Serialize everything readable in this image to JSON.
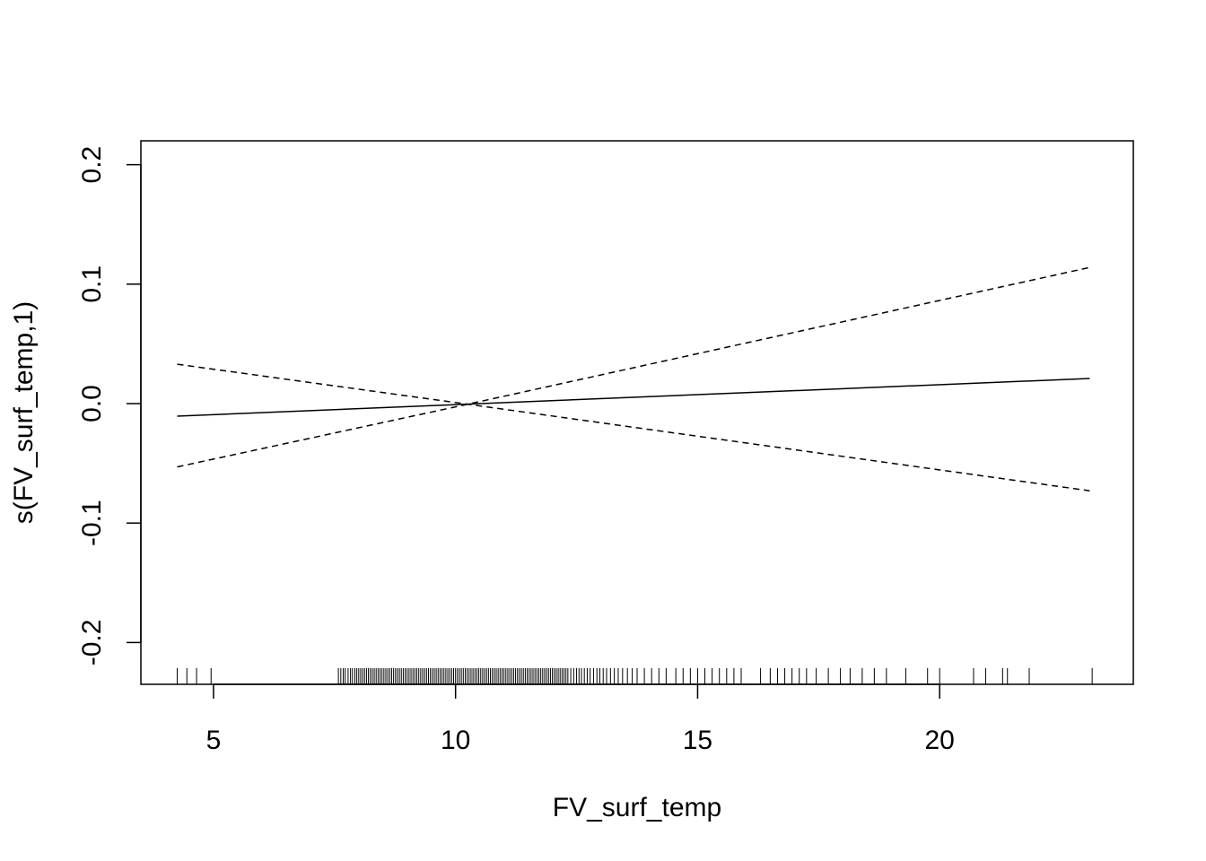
{
  "chart_data": {
    "type": "line",
    "title": "",
    "xlabel": "FV_surf_temp",
    "ylabel": "s(FV_surf_temp,1)",
    "xlim": [
      3.5,
      24
    ],
    "ylim": [
      -0.235,
      0.22
    ],
    "x_ticks": [
      5,
      10,
      15,
      20
    ],
    "x_tick_labels": [
      "5",
      "10",
      "15",
      "20"
    ],
    "y_ticks": [
      -0.2,
      -0.1,
      0.0,
      0.1,
      0.2
    ],
    "y_tick_labels": [
      "-0.2",
      "-0.1",
      "0.0",
      "0.1",
      "0.2"
    ],
    "grid": false,
    "legend": "none",
    "series": [
      {
        "style": "solid",
        "x": [
          4.25,
          23.1
        ],
        "y": [
          -0.0105,
          0.021
        ]
      },
      {
        "style": "dashed",
        "x": [
          4.25,
          10.25,
          23.1
        ],
        "y": [
          -0.053,
          -0.0005,
          0.114
        ]
      },
      {
        "style": "dashed",
        "x": [
          4.25,
          10.25,
          23.1
        ],
        "y": [
          0.033,
          -0.0005,
          -0.073
        ]
      }
    ],
    "rug_x": [
      4.25,
      4.45,
      4.65,
      4.95,
      7.58,
      7.63,
      7.68,
      7.72,
      7.78,
      7.83,
      7.87,
      7.92,
      7.96,
      8.0,
      8.04,
      8.08,
      8.12,
      8.16,
      8.2,
      8.24,
      8.28,
      8.32,
      8.36,
      8.4,
      8.44,
      8.48,
      8.52,
      8.56,
      8.6,
      8.64,
      8.68,
      8.72,
      8.76,
      8.8,
      8.84,
      8.88,
      8.92,
      8.96,
      9.0,
      9.04,
      9.08,
      9.12,
      9.16,
      9.2,
      9.24,
      9.28,
      9.32,
      9.36,
      9.4,
      9.44,
      9.48,
      9.52,
      9.56,
      9.6,
      9.64,
      9.68,
      9.72,
      9.76,
      9.8,
      9.84,
      9.88,
      9.92,
      9.96,
      10.0,
      10.04,
      10.08,
      10.12,
      10.16,
      10.2,
      10.24,
      10.28,
      10.32,
      10.36,
      10.4,
      10.44,
      10.48,
      10.52,
      10.56,
      10.6,
      10.64,
      10.68,
      10.72,
      10.76,
      10.8,
      10.84,
      10.88,
      10.92,
      10.96,
      11.0,
      11.04,
      11.08,
      11.12,
      11.16,
      11.2,
      11.24,
      11.28,
      11.32,
      11.36,
      11.4,
      11.44,
      11.48,
      11.52,
      11.56,
      11.6,
      11.64,
      11.68,
      11.72,
      11.76,
      11.8,
      11.84,
      11.88,
      11.92,
      11.96,
      12.0,
      12.04,
      12.08,
      12.12,
      12.16,
      12.2,
      12.24,
      12.28,
      12.32,
      12.38,
      12.44,
      12.5,
      12.55,
      12.6,
      12.66,
      12.72,
      12.78,
      12.85,
      12.92,
      12.98,
      13.05,
      13.12,
      13.2,
      13.28,
      13.36,
      13.45,
      13.55,
      13.65,
      13.75,
      13.9,
      14.05,
      14.2,
      14.35,
      14.55,
      14.7,
      14.85,
      15.0,
      15.15,
      15.3,
      15.45,
      15.6,
      15.75,
      15.9,
      16.3,
      16.5,
      16.65,
      16.8,
      16.95,
      17.1,
      17.25,
      17.45,
      17.7,
      17.95,
      18.15,
      18.4,
      18.65,
      18.9,
      19.3,
      19.75,
      20.0,
      20.7,
      20.95,
      21.3,
      21.4,
      21.85,
      23.15
    ]
  }
}
